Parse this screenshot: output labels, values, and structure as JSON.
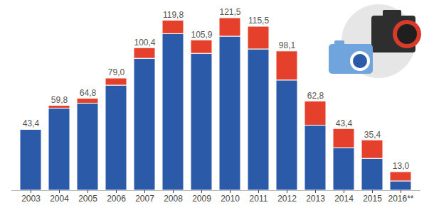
{
  "chart_data": {
    "type": "bar",
    "stacked": true,
    "categories": [
      "2003",
      "2004",
      "2005",
      "2006",
      "2007",
      "2008",
      "2009",
      "2010",
      "2011",
      "2012",
      "2013",
      "2014",
      "2015",
      "2016**"
    ],
    "series": [
      {
        "color": "#2a5aa8",
        "values": [
          42.9,
          57.8,
          61.3,
          74.0,
          92.9,
          110.3,
          96.4,
          108.5,
          99.5,
          77.6,
          45.8,
          29.9,
          22.4,
          6.5
        ]
      },
      {
        "color": "#e5402b",
        "values": [
          0.5,
          2.0,
          3.5,
          5.0,
          7.5,
          9.5,
          9.5,
          13.0,
          16.0,
          20.5,
          17.0,
          13.5,
          13.0,
          6.5
        ]
      }
    ],
    "totals": [
      43.4,
      59.8,
      64.8,
      79.0,
      100.4,
      119.8,
      105.9,
      121.5,
      115.5,
      98.1,
      62.8,
      43.4,
      35.4,
      13.0
    ],
    "total_labels": [
      "43,4",
      "59,8",
      "64,8",
      "79,0",
      "100,4",
      "119,8",
      "105,9",
      "121,5",
      "115,5",
      "98,1",
      "62,8",
      "43,4",
      "35,4",
      "13,0"
    ],
    "ylim": [
      0,
      121.5
    ],
    "tick_labels": "x",
    "grid": false
  }
}
